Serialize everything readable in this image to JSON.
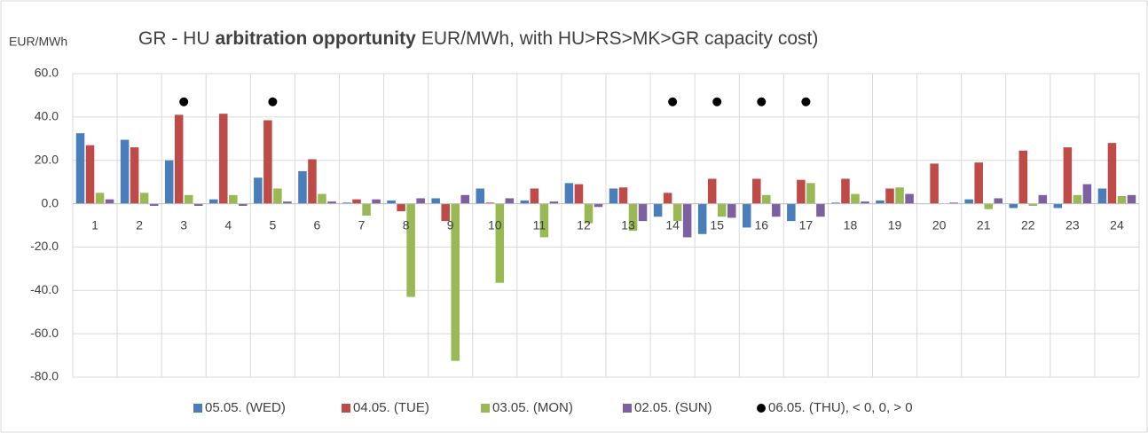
{
  "chart_data": {
    "type": "bar",
    "title": [
      "GR - HU",
      "arbitration opportunity",
      "EUR/MWh, with HU>RS>MK>GR capacity cost)"
    ],
    "y_label": "EUR/MWh",
    "categories": [
      "1",
      "2",
      "3",
      "4",
      "5",
      "6",
      "7",
      "8",
      "9",
      "10",
      "11",
      "12",
      "13",
      "14",
      "15",
      "16",
      "17",
      "18",
      "19",
      "20",
      "21",
      "22",
      "23",
      "24"
    ],
    "series": [
      {
        "name": "05.05. (WED)",
        "color": "#4a7ebb",
        "values": [
          32.5,
          29.5,
          20,
          2,
          12,
          15,
          0.5,
          1.5,
          2.5,
          7,
          1.5,
          9.5,
          7,
          -6,
          -14,
          -11,
          -8,
          0.5,
          1.5,
          0,
          2,
          -2,
          -2,
          7
        ]
      },
      {
        "name": "04.05. (TUE)",
        "color": "#be4b48",
        "values": [
          27,
          26,
          41,
          41.5,
          38.5,
          20.5,
          2,
          -3.5,
          -8,
          0.5,
          7,
          9,
          7.5,
          5,
          11.5,
          11.5,
          11,
          11.5,
          7,
          18.5,
          19,
          24.5,
          26,
          28
        ]
      },
      {
        "name": "03.05. (MON)",
        "color": "#98b954",
        "values": [
          5,
          5,
          4,
          4,
          7,
          4.5,
          -5.5,
          -43,
          -72.5,
          -36.5,
          -15.5,
          -9,
          -12.5,
          -8,
          -6,
          4,
          9.5,
          4.5,
          7.5,
          0,
          -2.5,
          -1,
          4,
          3.5
        ]
      },
      {
        "name": "02.05. (SUN)",
        "color": "#7d60a0",
        "values": [
          2,
          -1,
          -1,
          -1,
          1,
          1,
          2,
          2.5,
          4,
          2.5,
          1,
          -1.5,
          -8,
          -15.5,
          -6.5,
          -6,
          -6,
          1,
          4.5,
          0.5,
          2.5,
          4,
          9,
          4
        ]
      },
      {
        "name": "06.05. (THU), < 0, 0, > 0",
        "color": "#000000",
        "marker": "dot",
        "values": [
          null,
          null,
          47,
          null,
          47,
          null,
          null,
          null,
          null,
          null,
          null,
          null,
          null,
          47,
          47,
          47,
          47,
          null,
          null,
          null,
          null,
          null,
          null,
          null
        ]
      }
    ],
    "ylim": [
      -80,
      60
    ],
    "yticks": [
      {
        "value": -80,
        "label": "-80.0"
      },
      {
        "value": -60,
        "label": "-60.0"
      },
      {
        "value": -40,
        "label": "-40.0"
      },
      {
        "value": -20,
        "label": "-20.0"
      },
      {
        "value": 0,
        "label": "0.0"
      },
      {
        "value": 20,
        "label": "20.0"
      },
      {
        "value": 40,
        "label": "40.0"
      },
      {
        "value": 60,
        "label": "60.0"
      }
    ],
    "grid": true,
    "legend": "bottom"
  }
}
